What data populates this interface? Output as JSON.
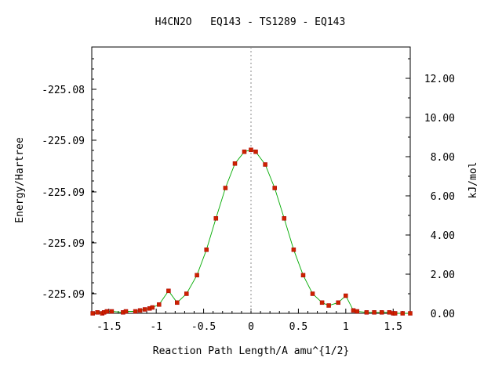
{
  "chart_data": {
    "type": "line",
    "title": "H4CN2O   EQ143 - TS1289 - EQ143",
    "xlabel": "Reaction Path Length/A amu^{1/2}",
    "ylabel": "Energy/Hartree",
    "y2label": "kJ/mol",
    "xlim": [
      -1.68,
      1.68
    ],
    "y2lim": [
      0.0,
      13.6
    ],
    "x_ticks": [
      "-1.5",
      "-1",
      "-0.5",
      "0",
      "0.5",
      "1",
      "1.5"
    ],
    "y_tick_labels": [
      "-225.08",
      "-225.09",
      "-225.09",
      "-225.09",
      "-225.09"
    ],
    "y2_ticks": [
      "0.00",
      "2.00",
      "4.00",
      "6.00",
      "8.00",
      "10.00",
      "12.00"
    ],
    "grid": false,
    "colors": {
      "line": "#00aa00",
      "marker": "#cc2200",
      "marker_edge": "#aa0000",
      "center_line": "#888888"
    },
    "series": [
      {
        "x": [
          -1.67,
          -1.62,
          -1.57,
          -1.55,
          -1.52,
          -1.47,
          -1.35,
          -1.32,
          -1.22,
          -1.17,
          -1.12,
          -1.07,
          -1.04,
          -0.97,
          -0.87,
          -0.78,
          -0.68,
          -0.57,
          -0.47,
          -0.37,
          -0.27,
          -0.17,
          -0.07,
          0.0,
          0.05,
          0.15,
          0.25,
          0.35,
          0.45,
          0.55,
          0.65,
          0.75,
          0.82,
          0.92,
          1.0,
          1.08,
          1.12,
          1.22,
          1.3,
          1.38,
          1.46,
          1.5,
          1.52,
          1.6,
          1.68
        ],
        "y": [
          0.0,
          0.05,
          0.0,
          0.05,
          0.1,
          0.1,
          0.05,
          0.1,
          0.1,
          0.15,
          0.2,
          0.25,
          0.3,
          0.45,
          1.15,
          0.55,
          1.0,
          1.95,
          3.25,
          4.85,
          6.4,
          7.65,
          8.25,
          8.35,
          8.25,
          7.6,
          6.4,
          4.85,
          3.25,
          1.95,
          1.0,
          0.55,
          0.4,
          0.55,
          0.9,
          0.15,
          0.1,
          0.05,
          0.05,
          0.05,
          0.05,
          0.0,
          0.0,
          0.0,
          0.0
        ]
      }
    ]
  }
}
